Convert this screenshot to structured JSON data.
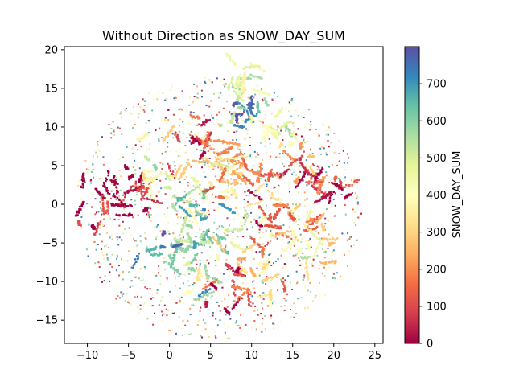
{
  "chart_data": {
    "type": "scatter",
    "title": "Without Direction as SNOW_DAY_SUM",
    "xlabel": "",
    "ylabel": "",
    "xlim": [
      -12.8,
      26
    ],
    "ylim": [
      -18,
      20.4
    ],
    "xticks": [
      -10,
      -5,
      0,
      5,
      10,
      15,
      20,
      25
    ],
    "yticks": [
      -15,
      -10,
      -5,
      0,
      5,
      10,
      15,
      20
    ],
    "xtick_labels": [
      "−10",
      "−5",
      "0",
      "5",
      "10",
      "15",
      "20",
      "25"
    ],
    "ytick_labels": [
      "−15",
      "−10",
      "−5",
      "0",
      "5",
      "10",
      "15",
      "20"
    ],
    "grid": false,
    "colorbar": {
      "label": "SNOW_DAY_SUM",
      "colormap": "Spectral",
      "range": [
        0,
        800
      ],
      "ticks": [
        0,
        100,
        200,
        300,
        400,
        500,
        600,
        700
      ],
      "stops": [
        "#9e0142",
        "#d53e4f",
        "#f46d43",
        "#fdae61",
        "#fee08b",
        "#ffffbf",
        "#e6f598",
        "#abdda4",
        "#66c2a5",
        "#3288bd",
        "#5e4fa2"
      ]
    },
    "clusters": [
      {
        "x": -7.5,
        "y": -0.5,
        "r": 4.0,
        "value": 20
      },
      {
        "x": -4.0,
        "y": 3.0,
        "r": 3.5,
        "value": 30
      },
      {
        "x": 2.0,
        "y": 0.0,
        "r": 4.0,
        "value": 600
      },
      {
        "x": 5.5,
        "y": -3.0,
        "r": 4.5,
        "value": 550
      },
      {
        "x": 8.0,
        "y": 2.0,
        "r": 4.0,
        "value": 250
      },
      {
        "x": 11.0,
        "y": 0.5,
        "r": 4.5,
        "value": 200
      },
      {
        "x": 14.0,
        "y": -2.0,
        "r": 4.0,
        "value": 180
      },
      {
        "x": 17.5,
        "y": -4.5,
        "r": 3.0,
        "value": 380
      },
      {
        "x": 9.0,
        "y": 12.0,
        "r": 2.0,
        "value": 700
      },
      {
        "x": 6.5,
        "y": 6.0,
        "r": 3.0,
        "value": 320
      },
      {
        "x": 3.5,
        "y": -8.0,
        "r": 4.0,
        "value": 500
      },
      {
        "x": 11.0,
        "y": -8.5,
        "r": 3.5,
        "value": 300
      },
      {
        "x": 15.0,
        "y": 5.0,
        "r": 3.5,
        "value": 150
      },
      {
        "x": 19.0,
        "y": 2.0,
        "r": 3.0,
        "value": 60
      },
      {
        "x": 0.0,
        "y": -5.0,
        "r": 3.5,
        "value": 650
      },
      {
        "x": 4.0,
        "y": 8.0,
        "r": 3.0,
        "value": 100
      },
      {
        "x": 8.0,
        "y": -12.0,
        "r": 4.0,
        "value": 50
      },
      {
        "x": 13.0,
        "y": 10.0,
        "r": 3.0,
        "value": 420
      },
      {
        "x": -1.0,
        "y": 5.0,
        "r": 3.0,
        "value": 380
      },
      {
        "x": 9.5,
        "y": 16.0,
        "r": 2.5,
        "value": 450
      }
    ],
    "background_scatter": {
      "center": [
        6.0,
        -0.5
      ],
      "radius_x": 17.5,
      "radius_y": 17.0,
      "value_range": [
        0,
        800
      ]
    }
  }
}
